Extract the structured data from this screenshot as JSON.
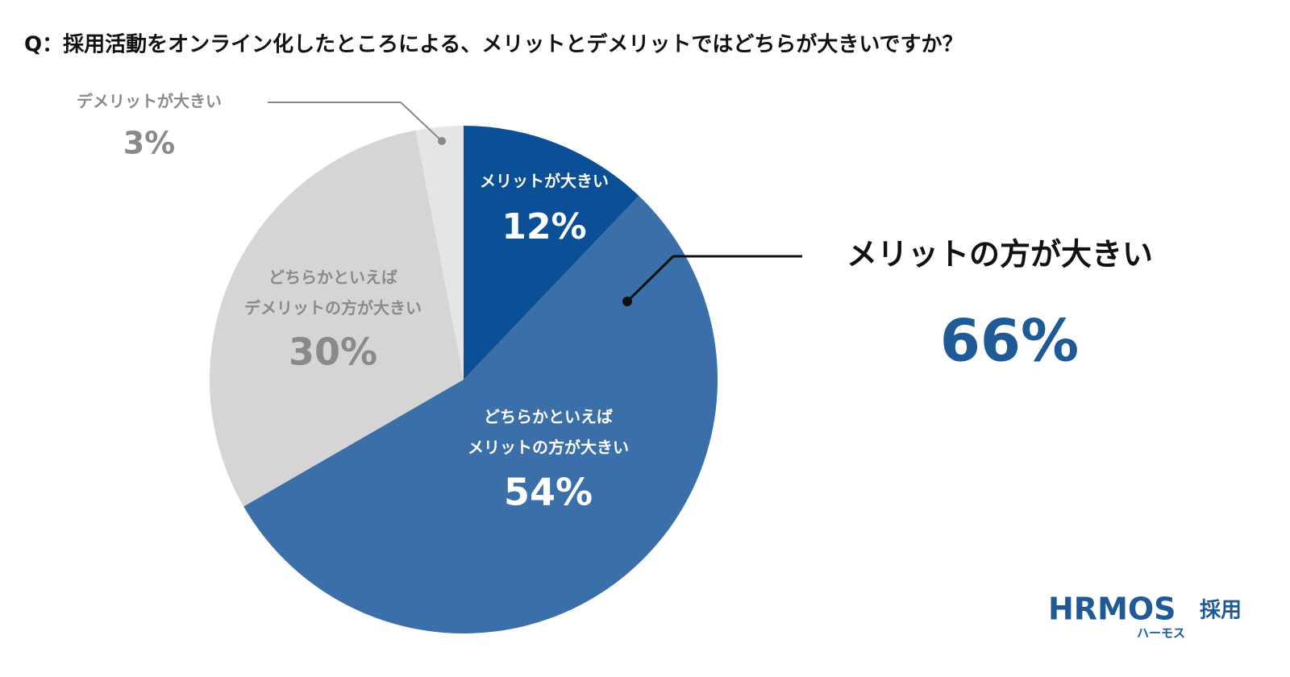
{
  "chart_data": {
    "type": "pie",
    "title": "Q：採用活動をオンライン化したところによる、メリットとデメリットではどちらが大きいですか？",
    "categories": [
      "メリットが大きい",
      "どちらかといえば\nメリットの方が大きい",
      "どちらかといえば\nデメリットの方が大きい",
      "デメリットが大きい"
    ],
    "values": [
      12,
      54,
      30,
      3
    ],
    "value_labels": [
      "12%",
      "54%",
      "30%",
      "3%"
    ],
    "colors": [
      "#0b4f96",
      "#3b6fa9",
      "#d5d5d5",
      "#e5e5e5"
    ],
    "annotation": {
      "text": "メリットの方が大きい",
      "value_label": "66%"
    }
  },
  "logo": {
    "name": "HRMOS",
    "suffix": "採用",
    "kana": "ハーモス"
  }
}
